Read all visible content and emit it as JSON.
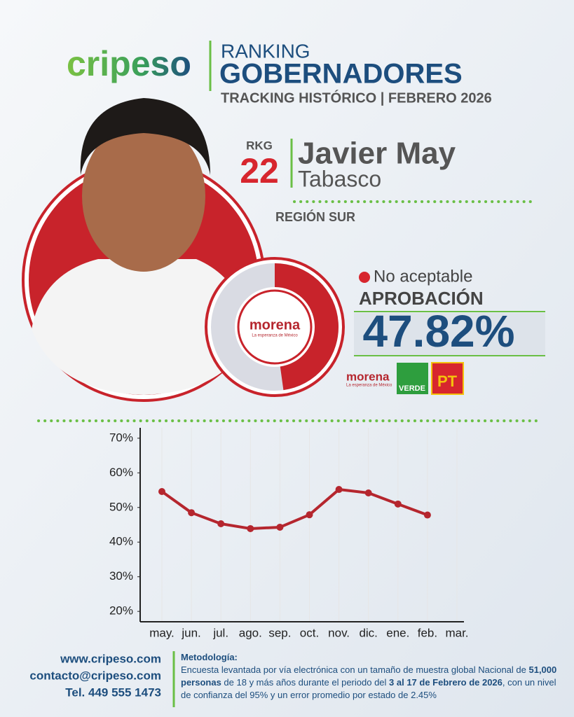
{
  "header": {
    "brand": "cripeso",
    "kicker": "RANKING",
    "title": "GOBERNADORES",
    "subtitle": "TRACKING HISTÓRICO | FEBRERO 2026"
  },
  "candidate": {
    "rank_label": "RKG",
    "rank": "22",
    "name": "Javier May",
    "state": "Tabasco",
    "region": "REGIÓN SUR",
    "status": "No aceptable",
    "approval_label": "APROBACIÓN",
    "approval": {
      "value": 47.82,
      "label": "47.82%"
    }
  },
  "parties": [
    {
      "name": "morena",
      "tagline": "La esperanza de México"
    },
    {
      "name": "VERDE"
    },
    {
      "name": "PT"
    }
  ],
  "chart_data": {
    "type": "line",
    "categories": [
      "may.",
      "jun.",
      "jul.",
      "ago.",
      "sep.",
      "oct.",
      "nov.",
      "dic.",
      "ene.",
      "feb.",
      "mar."
    ],
    "series": [
      {
        "name": null,
        "color": "#b5262e",
        "values": [
          54.6,
          48.5,
          45.3,
          43.9,
          44.3,
          47.9,
          55.2,
          54.2,
          51.0,
          47.82,
          null
        ]
      }
    ],
    "ylim": [
      17,
      73
    ],
    "yticks": [
      {
        "value": 20,
        "label": "20%"
      },
      {
        "value": 30,
        "label": "30%"
      },
      {
        "value": 40,
        "label": "40%"
      },
      {
        "value": 50,
        "label": "50%"
      },
      {
        "value": 60,
        "label": "60%"
      },
      {
        "value": 70,
        "label": "70%"
      }
    ],
    "grid": true
  },
  "footer": {
    "contacts": [
      "www.cripeso.com",
      "contacto@cripeso.com",
      "Tel. 449 555 1473"
    ],
    "methodology_title": "Metodología:",
    "methodology": [
      {
        "text": "Encuesta levantada por vía electrónica con un tamaño de muestra global Nacional de ",
        "bold": false
      },
      {
        "text": "51,000 personas",
        "bold": true
      },
      {
        "text": " de 18 y más años durante el periodo del ",
        "bold": false
      },
      {
        "text": "3 al 17 de Febrero de 2026",
        "bold": true
      },
      {
        "text": ", con un nivel de confianza del 95% y un error promedio por estado de 2.45%",
        "bold": false
      }
    ]
  }
}
